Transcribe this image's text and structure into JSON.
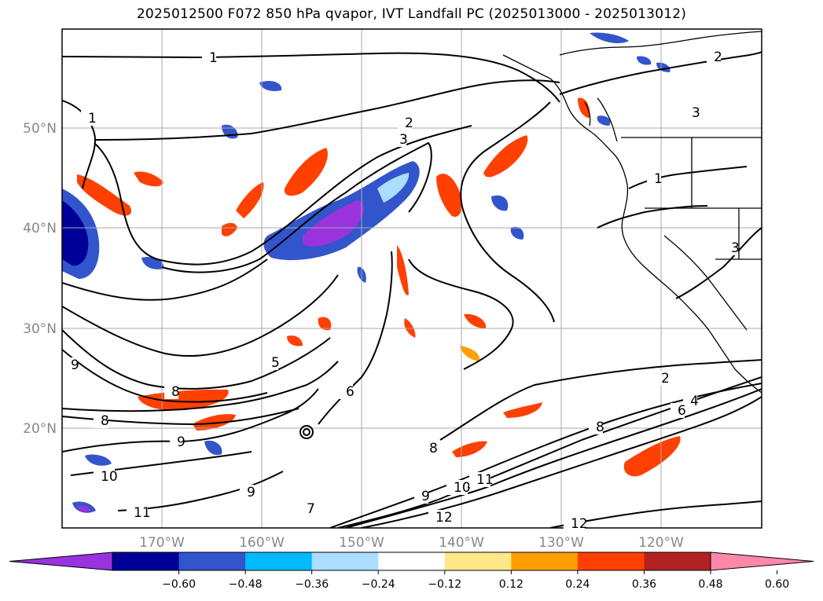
{
  "title": "2025012500 F072 850 hPa qvapor, IVT Landfall PC (2025013000 - 2025013012)",
  "lat_labels": [
    "50°N",
    "40°N",
    "30°N",
    "20°N"
  ],
  "lon_labels": [
    "170°W",
    "160°W",
    "150°W",
    "140°W",
    "130°W",
    "120°W"
  ],
  "colorbar": {
    "ticks": [
      "−0.60",
      "−0.48",
      "−0.36",
      "−0.24",
      "−0.12",
      "0.12",
      "0.24",
      "0.36",
      "0.48",
      "0.60"
    ],
    "colors": [
      "#9933dd",
      "#000099",
      "#3355cc",
      "#00bbff",
      "#aaddff",
      "#ffffff",
      "#ffe88a",
      "#ffa000",
      "#ff4000",
      "#b22222",
      "#ff88aa"
    ]
  },
  "contour_labels": [
    "1",
    "1",
    "2",
    "3",
    "2",
    "5",
    "9",
    "8",
    "8",
    "9",
    "9",
    "10",
    "11",
    "6",
    "7",
    "9",
    "10",
    "11",
    "12",
    "8",
    "2",
    "4",
    "6",
    "8",
    "12",
    "3",
    "1",
    "3"
  ],
  "colors": {
    "contour": "#000000",
    "coastline": "#000000",
    "grid": "#aaaaaa",
    "frame": "#000000"
  }
}
